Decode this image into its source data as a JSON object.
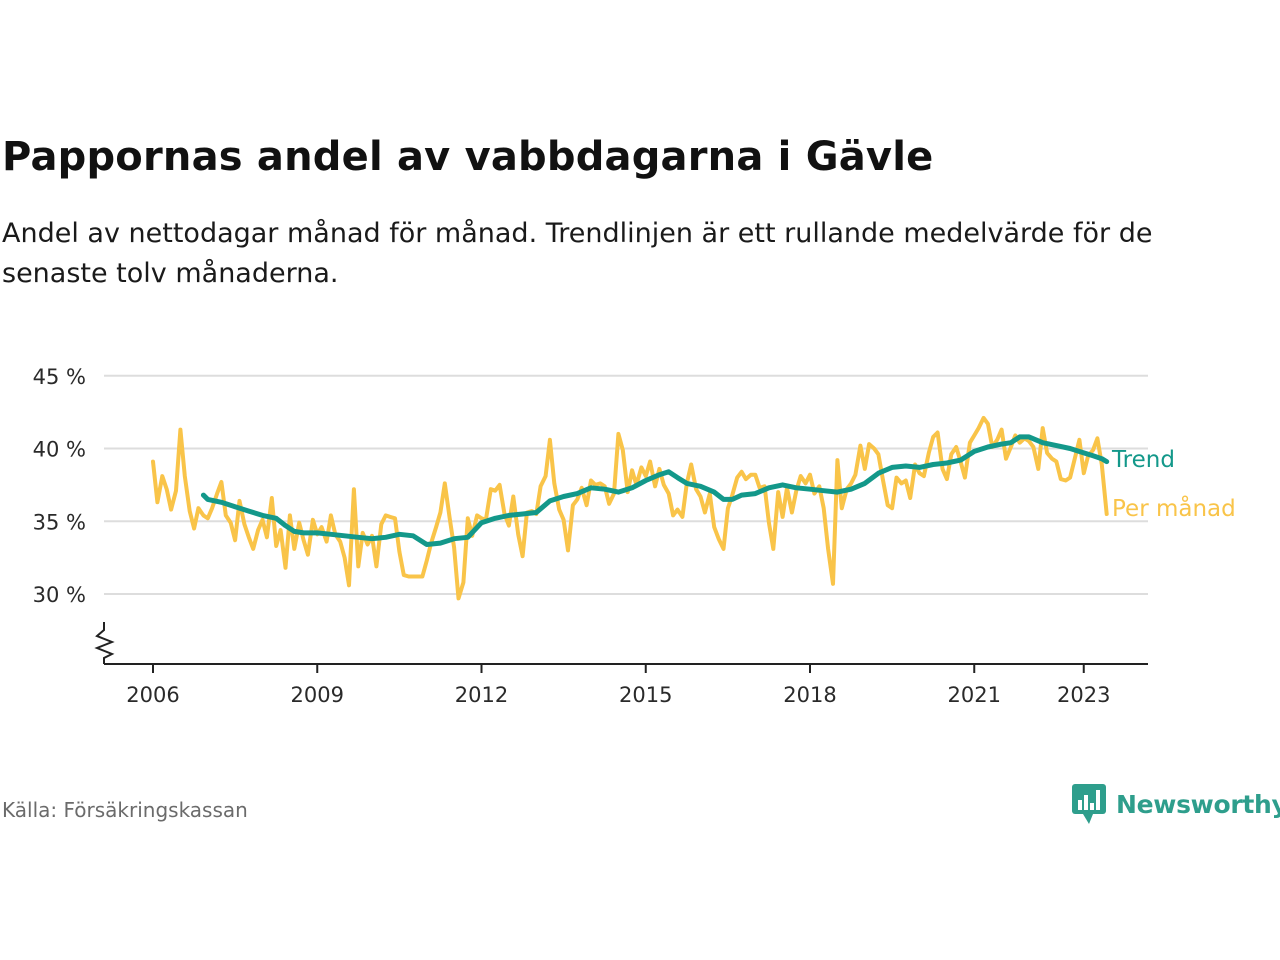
{
  "title": "Pappornas andel av vabbdagarna i Gävle",
  "subtitle": "Andel av nettodagar månad för månad. Trendlinjen är ett rullande medelvärde för de senaste tolv månaderna.",
  "source": "Källa: Försäkringskassan",
  "brand": "Newsworthy",
  "colors": {
    "monthly": "#f9c449",
    "trend": "#13988a",
    "brand": "#2e9e8c",
    "grid": "#dddddd",
    "axis": "#222222"
  },
  "chart_data": {
    "type": "line",
    "x_unit": "year (decimal)",
    "y_unit": "percent",
    "ylim": [
      25,
      45
    ],
    "xlim": [
      2005.1,
      2023.9
    ],
    "yticks": [
      30,
      35,
      40,
      45
    ],
    "ytick_labels": [
      "30 %",
      "35 %",
      "40 %",
      "45 %"
    ],
    "xticks": [
      2006,
      2009,
      2012,
      2015,
      2018,
      2021,
      2023
    ],
    "xtick_labels": [
      "2006",
      "2009",
      "2012",
      "2015",
      "2018",
      "2021",
      "2023"
    ],
    "grid": true,
    "axis_break": true,
    "legend": "direct labels at line ends",
    "series": [
      {
        "name": "Per månad",
        "color": "#f9c449",
        "points": [
          [
            2006.0,
            39.1
          ],
          [
            2006.08,
            36.3
          ],
          [
            2006.17,
            38.1
          ],
          [
            2006.25,
            37.2
          ],
          [
            2006.33,
            35.8
          ],
          [
            2006.42,
            37.1
          ],
          [
            2006.5,
            41.3
          ],
          [
            2006.58,
            38.1
          ],
          [
            2006.67,
            35.7
          ],
          [
            2006.75,
            34.5
          ],
          [
            2006.83,
            35.9
          ],
          [
            2006.92,
            35.4
          ],
          [
            2007.0,
            35.2
          ],
          [
            2007.08,
            35.9
          ],
          [
            2007.17,
            36.9
          ],
          [
            2007.25,
            37.7
          ],
          [
            2007.33,
            35.4
          ],
          [
            2007.42,
            34.9
          ],
          [
            2007.5,
            33.7
          ],
          [
            2007.58,
            36.4
          ],
          [
            2007.67,
            34.8
          ],
          [
            2007.75,
            33.9
          ],
          [
            2007.83,
            33.1
          ],
          [
            2007.92,
            34.4
          ],
          [
            2008.0,
            35.1
          ],
          [
            2008.08,
            33.9
          ],
          [
            2008.17,
            36.6
          ],
          [
            2008.25,
            33.3
          ],
          [
            2008.33,
            34.4
          ],
          [
            2008.42,
            31.8
          ],
          [
            2008.5,
            35.4
          ],
          [
            2008.58,
            33.1
          ],
          [
            2008.67,
            34.9
          ],
          [
            2008.75,
            33.7
          ],
          [
            2008.83,
            32.7
          ],
          [
            2008.92,
            35.1
          ],
          [
            2009.0,
            34.1
          ],
          [
            2009.08,
            34.6
          ],
          [
            2009.17,
            33.6
          ],
          [
            2009.25,
            35.4
          ],
          [
            2009.33,
            34.1
          ],
          [
            2009.42,
            33.6
          ],
          [
            2009.5,
            32.5
          ],
          [
            2009.58,
            30.6
          ],
          [
            2009.67,
            37.2
          ],
          [
            2009.75,
            31.9
          ],
          [
            2009.83,
            34.2
          ],
          [
            2009.92,
            33.4
          ],
          [
            2010.0,
            34.0
          ],
          [
            2010.08,
            31.9
          ],
          [
            2010.17,
            34.8
          ],
          [
            2010.25,
            35.4
          ],
          [
            2010.33,
            35.3
          ],
          [
            2010.42,
            35.2
          ],
          [
            2010.5,
            32.9
          ],
          [
            2010.58,
            31.3
          ],
          [
            2010.67,
            31.2
          ],
          [
            2010.75,
            31.2
          ],
          [
            2010.83,
            31.2
          ],
          [
            2010.92,
            31.2
          ],
          [
            2011.0,
            32.3
          ],
          [
            2011.08,
            33.5
          ],
          [
            2011.17,
            34.6
          ],
          [
            2011.25,
            35.6
          ],
          [
            2011.33,
            37.6
          ],
          [
            2011.42,
            35.2
          ],
          [
            2011.5,
            33.2
          ],
          [
            2011.58,
            29.7
          ],
          [
            2011.67,
            30.8
          ],
          [
            2011.75,
            35.2
          ],
          [
            2011.83,
            34.0
          ],
          [
            2011.92,
            35.4
          ],
          [
            2012.0,
            35.2
          ],
          [
            2012.08,
            35.1
          ],
          [
            2012.17,
            37.2
          ],
          [
            2012.25,
            37.1
          ],
          [
            2012.33,
            37.5
          ],
          [
            2012.42,
            35.5
          ],
          [
            2012.5,
            34.7
          ],
          [
            2012.58,
            36.7
          ],
          [
            2012.67,
            34.1
          ],
          [
            2012.75,
            32.6
          ],
          [
            2012.83,
            35.6
          ],
          [
            2012.92,
            35.7
          ],
          [
            2013.0,
            35.5
          ],
          [
            2013.08,
            37.4
          ],
          [
            2013.17,
            38.1
          ],
          [
            2013.25,
            40.6
          ],
          [
            2013.33,
            37.6
          ],
          [
            2013.42,
            35.8
          ],
          [
            2013.5,
            35.1
          ],
          [
            2013.58,
            33.0
          ],
          [
            2013.67,
            36.1
          ],
          [
            2013.75,
            36.5
          ],
          [
            2013.83,
            37.3
          ],
          [
            2013.92,
            36.1
          ],
          [
            2014.0,
            37.8
          ],
          [
            2014.08,
            37.5
          ],
          [
            2014.17,
            37.6
          ],
          [
            2014.25,
            37.4
          ],
          [
            2014.33,
            36.2
          ],
          [
            2014.42,
            36.9
          ],
          [
            2014.5,
            41.0
          ],
          [
            2014.58,
            39.9
          ],
          [
            2014.67,
            37.0
          ],
          [
            2014.75,
            38.5
          ],
          [
            2014.83,
            37.5
          ],
          [
            2014.92,
            38.7
          ],
          [
            2015.0,
            38.1
          ],
          [
            2015.08,
            39.1
          ],
          [
            2015.17,
            37.4
          ],
          [
            2015.25,
            38.6
          ],
          [
            2015.33,
            37.5
          ],
          [
            2015.42,
            36.9
          ],
          [
            2015.5,
            35.4
          ],
          [
            2015.58,
            35.8
          ],
          [
            2015.67,
            35.3
          ],
          [
            2015.75,
            37.6
          ],
          [
            2015.83,
            38.9
          ],
          [
            2015.92,
            37.2
          ],
          [
            2016.0,
            36.7
          ],
          [
            2016.08,
            35.6
          ],
          [
            2016.17,
            36.9
          ],
          [
            2016.25,
            34.6
          ],
          [
            2016.33,
            33.8
          ],
          [
            2016.42,
            33.1
          ],
          [
            2016.5,
            35.9
          ],
          [
            2016.58,
            36.8
          ],
          [
            2016.67,
            38.0
          ],
          [
            2016.75,
            38.4
          ],
          [
            2016.83,
            37.9
          ],
          [
            2016.92,
            38.2
          ],
          [
            2017.0,
            38.2
          ],
          [
            2017.08,
            37.3
          ],
          [
            2017.17,
            37.4
          ],
          [
            2017.25,
            34.9
          ],
          [
            2017.33,
            33.1
          ],
          [
            2017.42,
            37.0
          ],
          [
            2017.5,
            35.3
          ],
          [
            2017.58,
            37.3
          ],
          [
            2017.67,
            35.6
          ],
          [
            2017.75,
            37.1
          ],
          [
            2017.83,
            38.1
          ],
          [
            2017.92,
            37.6
          ],
          [
            2018.0,
            38.2
          ],
          [
            2018.08,
            36.9
          ],
          [
            2018.17,
            37.4
          ],
          [
            2018.25,
            35.9
          ],
          [
            2018.33,
            33.1
          ],
          [
            2018.42,
            30.7
          ],
          [
            2018.5,
            39.2
          ],
          [
            2018.58,
            35.9
          ],
          [
            2018.67,
            37.2
          ],
          [
            2018.75,
            37.6
          ],
          [
            2018.83,
            38.2
          ],
          [
            2018.92,
            40.2
          ],
          [
            2019.0,
            38.6
          ],
          [
            2019.08,
            40.3
          ],
          [
            2019.17,
            40.0
          ],
          [
            2019.25,
            39.6
          ],
          [
            2019.33,
            37.9
          ],
          [
            2019.42,
            36.1
          ],
          [
            2019.5,
            35.9
          ],
          [
            2019.58,
            38.0
          ],
          [
            2019.67,
            37.6
          ],
          [
            2019.75,
            37.8
          ],
          [
            2019.83,
            36.6
          ],
          [
            2019.92,
            38.9
          ],
          [
            2020.0,
            38.3
          ],
          [
            2020.08,
            38.1
          ],
          [
            2020.17,
            39.7
          ],
          [
            2020.25,
            40.8
          ],
          [
            2020.33,
            41.1
          ],
          [
            2020.42,
            38.6
          ],
          [
            2020.5,
            37.9
          ],
          [
            2020.58,
            39.6
          ],
          [
            2020.67,
            40.1
          ],
          [
            2020.75,
            39.1
          ],
          [
            2020.83,
            38.0
          ],
          [
            2020.92,
            40.4
          ],
          [
            2021.0,
            40.9
          ],
          [
            2021.08,
            41.4
          ],
          [
            2021.17,
            42.1
          ],
          [
            2021.25,
            41.7
          ],
          [
            2021.33,
            40.1
          ],
          [
            2021.42,
            40.6
          ],
          [
            2021.5,
            41.3
          ],
          [
            2021.58,
            39.3
          ],
          [
            2021.67,
            40.1
          ],
          [
            2021.75,
            40.9
          ],
          [
            2021.83,
            40.4
          ],
          [
            2021.92,
            40.7
          ],
          [
            2022.0,
            40.5
          ],
          [
            2022.08,
            40.1
          ],
          [
            2022.17,
            38.6
          ],
          [
            2022.25,
            41.4
          ],
          [
            2022.33,
            39.7
          ],
          [
            2022.42,
            39.3
          ],
          [
            2022.5,
            39.1
          ],
          [
            2022.58,
            37.9
          ],
          [
            2022.67,
            37.8
          ],
          [
            2022.75,
            38.0
          ],
          [
            2022.83,
            39.2
          ],
          [
            2022.92,
            40.6
          ],
          [
            2023.0,
            38.3
          ],
          [
            2023.08,
            39.5
          ],
          [
            2023.17,
            39.9
          ],
          [
            2023.25,
            40.7
          ],
          [
            2023.33,
            38.9
          ],
          [
            2023.42,
            35.5
          ]
        ]
      },
      {
        "name": "Trend",
        "color": "#13988a",
        "points": [
          [
            2006.92,
            36.8
          ],
          [
            2007.0,
            36.5
          ],
          [
            2007.25,
            36.3
          ],
          [
            2007.5,
            36.0
          ],
          [
            2007.75,
            35.7
          ],
          [
            2008.0,
            35.4
          ],
          [
            2008.25,
            35.2
          ],
          [
            2008.42,
            34.7
          ],
          [
            2008.58,
            34.3
          ],
          [
            2008.75,
            34.2
          ],
          [
            2009.0,
            34.2
          ],
          [
            2009.25,
            34.1
          ],
          [
            2009.5,
            34.0
          ],
          [
            2009.75,
            33.9
          ],
          [
            2010.0,
            33.8
          ],
          [
            2010.25,
            33.9
          ],
          [
            2010.5,
            34.1
          ],
          [
            2010.75,
            34.0
          ],
          [
            2011.0,
            33.4
          ],
          [
            2011.25,
            33.5
          ],
          [
            2011.5,
            33.8
          ],
          [
            2011.75,
            33.9
          ],
          [
            2012.0,
            34.9
          ],
          [
            2012.25,
            35.2
          ],
          [
            2012.5,
            35.4
          ],
          [
            2012.75,
            35.5
          ],
          [
            2013.0,
            35.6
          ],
          [
            2013.25,
            36.4
          ],
          [
            2013.5,
            36.7
          ],
          [
            2013.75,
            36.9
          ],
          [
            2014.0,
            37.3
          ],
          [
            2014.25,
            37.2
          ],
          [
            2014.5,
            37.0
          ],
          [
            2014.75,
            37.3
          ],
          [
            2015.0,
            37.8
          ],
          [
            2015.25,
            38.2
          ],
          [
            2015.42,
            38.4
          ],
          [
            2015.58,
            38.0
          ],
          [
            2015.75,
            37.6
          ],
          [
            2016.0,
            37.4
          ],
          [
            2016.25,
            37.0
          ],
          [
            2016.42,
            36.5
          ],
          [
            2016.58,
            36.5
          ],
          [
            2016.75,
            36.8
          ],
          [
            2017.0,
            36.9
          ],
          [
            2017.25,
            37.3
          ],
          [
            2017.5,
            37.5
          ],
          [
            2017.75,
            37.3
          ],
          [
            2018.0,
            37.2
          ],
          [
            2018.25,
            37.1
          ],
          [
            2018.5,
            37.0
          ],
          [
            2018.75,
            37.2
          ],
          [
            2019.0,
            37.6
          ],
          [
            2019.25,
            38.3
          ],
          [
            2019.5,
            38.7
          ],
          [
            2019.75,
            38.8
          ],
          [
            2020.0,
            38.7
          ],
          [
            2020.25,
            38.9
          ],
          [
            2020.5,
            39.0
          ],
          [
            2020.75,
            39.2
          ],
          [
            2021.0,
            39.8
          ],
          [
            2021.25,
            40.1
          ],
          [
            2021.5,
            40.3
          ],
          [
            2021.67,
            40.4
          ],
          [
            2021.83,
            40.8
          ],
          [
            2022.0,
            40.8
          ],
          [
            2022.25,
            40.4
          ],
          [
            2022.5,
            40.2
          ],
          [
            2022.75,
            40.0
          ],
          [
            2023.0,
            39.7
          ],
          [
            2023.17,
            39.5
          ],
          [
            2023.33,
            39.3
          ],
          [
            2023.42,
            39.1
          ]
        ]
      }
    ]
  }
}
